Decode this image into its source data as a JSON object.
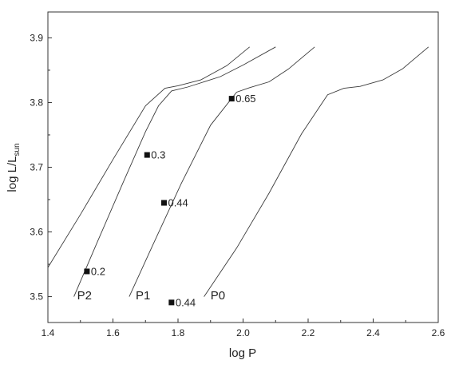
{
  "chart_data": {
    "type": "line",
    "xlabel": "log P",
    "ylabel_main": "log L/L",
    "ylabel_sub": "sun",
    "xlim": [
      1.4,
      2.6
    ],
    "ylim": [
      3.46,
      3.94
    ],
    "xticks": [
      1.4,
      1.6,
      1.8,
      2.0,
      2.2,
      2.4,
      2.6
    ],
    "xtick_labels": [
      "1.4",
      "1.6",
      "1.8",
      "2.0",
      "2.2",
      "2.4",
      "2.6"
    ],
    "yticks": [
      3.5,
      3.6,
      3.7,
      3.8,
      3.9
    ],
    "ytick_labels": [
      "3.5",
      "3.6",
      "3.7",
      "3.8",
      "3.9"
    ],
    "grid": false,
    "legend": "none",
    "series": [
      {
        "name": "",
        "x": [
          1.4,
          1.5,
          1.6,
          1.7,
          1.76,
          1.8,
          1.87,
          1.95,
          2.02
        ],
        "y": [
          3.545,
          3.627,
          3.712,
          3.795,
          3.822,
          3.826,
          3.835,
          3.857,
          3.886
        ]
      },
      {
        "name": "P2",
        "x": [
          1.48,
          1.55,
          1.63,
          1.7,
          1.74,
          1.78,
          1.83,
          1.93,
          2.0,
          2.1
        ],
        "y": [
          3.5,
          3.582,
          3.675,
          3.755,
          3.795,
          3.818,
          3.824,
          3.84,
          3.858,
          3.886
        ]
      },
      {
        "name": "P1",
        "x": [
          1.65,
          1.72,
          1.81,
          1.9,
          1.98,
          2.02,
          2.08,
          2.14,
          2.22
        ],
        "y": [
          3.5,
          3.577,
          3.675,
          3.765,
          3.816,
          3.823,
          3.832,
          3.852,
          3.886
        ]
      },
      {
        "name": "P0",
        "x": [
          1.88,
          1.98,
          2.08,
          2.18,
          2.26,
          2.31,
          2.36,
          2.43,
          2.49,
          2.57
        ],
        "y": [
          3.5,
          3.575,
          3.66,
          3.752,
          3.812,
          3.822,
          3.825,
          3.835,
          3.852,
          3.886
        ]
      }
    ],
    "curve_labels": [
      {
        "text": "P2",
        "x": 1.49,
        "y": 3.502
      },
      {
        "text": "P1",
        "x": 1.67,
        "y": 3.502
      },
      {
        "text": "P0",
        "x": 1.9,
        "y": 3.502
      }
    ],
    "points": [
      {
        "label": "0.2",
        "x": 1.52,
        "y": 3.539
      },
      {
        "label": "0.3",
        "x": 1.705,
        "y": 3.719
      },
      {
        "label": "0.44",
        "x": 1.757,
        "y": 3.645
      },
      {
        "label": "0.65",
        "x": 1.965,
        "y": 3.806
      },
      {
        "label": "0.44",
        "x": 1.78,
        "y": 3.491
      }
    ]
  }
}
